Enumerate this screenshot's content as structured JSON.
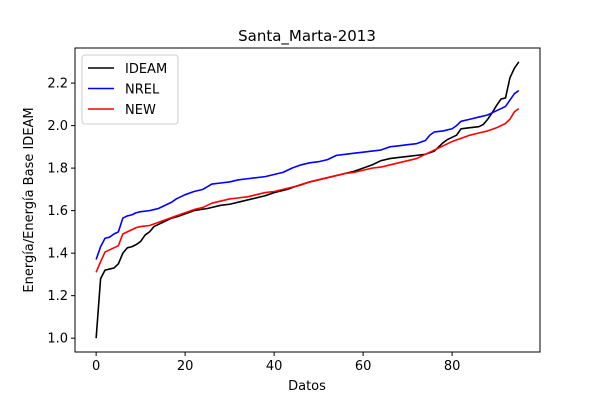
{
  "chart_data": {
    "type": "line",
    "title": "Santa_Marta-2013",
    "xlabel": "Datos",
    "ylabel": "Energía/Energía Base IDEAM",
    "xlim": [
      -4.75,
      99.75
    ],
    "ylim": [
      0.935,
      2.365
    ],
    "xticks": [
      0,
      20,
      40,
      60,
      80
    ],
    "yticks": [
      1.0,
      1.2,
      1.4,
      1.6,
      1.8,
      2.0,
      2.2
    ],
    "ytick_labels": [
      "1.0",
      "1.2",
      "1.4",
      "1.6",
      "1.8",
      "2.0",
      "2.2"
    ],
    "grid": false,
    "legend_position": "upper-left",
    "series": [
      {
        "name": "IDEAM",
        "color": "#000000",
        "points": [
          [
            0,
            1.0
          ],
          [
            1,
            1.28
          ],
          [
            2,
            1.32
          ],
          [
            3,
            1.325
          ],
          [
            4,
            1.33
          ],
          [
            5,
            1.35
          ],
          [
            6,
            1.4
          ],
          [
            7,
            1.425
          ],
          [
            8,
            1.43
          ],
          [
            9,
            1.44
          ],
          [
            10,
            1.455
          ],
          [
            11,
            1.485
          ],
          [
            12,
            1.5
          ],
          [
            13,
            1.525
          ],
          [
            14,
            1.535
          ],
          [
            15,
            1.545
          ],
          [
            16,
            1.555
          ],
          [
            17,
            1.565
          ],
          [
            18,
            1.57
          ],
          [
            20,
            1.585
          ],
          [
            22,
            1.6
          ],
          [
            25,
            1.61
          ],
          [
            28,
            1.625
          ],
          [
            30,
            1.63
          ],
          [
            33,
            1.645
          ],
          [
            36,
            1.66
          ],
          [
            38,
            1.67
          ],
          [
            40,
            1.685
          ],
          [
            43,
            1.7
          ],
          [
            45,
            1.715
          ],
          [
            48,
            1.735
          ],
          [
            50,
            1.745
          ],
          [
            52,
            1.755
          ],
          [
            55,
            1.77
          ],
          [
            58,
            1.785
          ],
          [
            60,
            1.8
          ],
          [
            62,
            1.815
          ],
          [
            64,
            1.835
          ],
          [
            66,
            1.845
          ],
          [
            68,
            1.85
          ],
          [
            70,
            1.855
          ],
          [
            72,
            1.86
          ],
          [
            74,
            1.865
          ],
          [
            76,
            1.88
          ],
          [
            77,
            1.9
          ],
          [
            78,
            1.92
          ],
          [
            79,
            1.935
          ],
          [
            80,
            1.945
          ],
          [
            81,
            1.955
          ],
          [
            82,
            1.985
          ],
          [
            84,
            1.99
          ],
          [
            86,
            1.995
          ],
          [
            87,
            2.005
          ],
          [
            88,
            2.03
          ],
          [
            89,
            2.06
          ],
          [
            90,
            2.095
          ],
          [
            91,
            2.125
          ],
          [
            92,
            2.13
          ],
          [
            93,
            2.225
          ],
          [
            94,
            2.27
          ],
          [
            95,
            2.3
          ]
        ]
      },
      {
        "name": "NREL",
        "color": "#0000ff",
        "points": [
          [
            0,
            1.37
          ],
          [
            1,
            1.43
          ],
          [
            2,
            1.47
          ],
          [
            3,
            1.475
          ],
          [
            4,
            1.49
          ],
          [
            5,
            1.5
          ],
          [
            6,
            1.565
          ],
          [
            7,
            1.575
          ],
          [
            8,
            1.58
          ],
          [
            9,
            1.59
          ],
          [
            10,
            1.595
          ],
          [
            12,
            1.6
          ],
          [
            13,
            1.605
          ],
          [
            14,
            1.61
          ],
          [
            15,
            1.62
          ],
          [
            16,
            1.63
          ],
          [
            17,
            1.64
          ],
          [
            18,
            1.655
          ],
          [
            19,
            1.665
          ],
          [
            20,
            1.675
          ],
          [
            22,
            1.69
          ],
          [
            24,
            1.7
          ],
          [
            26,
            1.725
          ],
          [
            28,
            1.73
          ],
          [
            30,
            1.735
          ],
          [
            32,
            1.745
          ],
          [
            34,
            1.75
          ],
          [
            36,
            1.755
          ],
          [
            38,
            1.76
          ],
          [
            40,
            1.77
          ],
          [
            42,
            1.78
          ],
          [
            44,
            1.8
          ],
          [
            46,
            1.815
          ],
          [
            48,
            1.825
          ],
          [
            50,
            1.83
          ],
          [
            52,
            1.84
          ],
          [
            54,
            1.86
          ],
          [
            56,
            1.865
          ],
          [
            58,
            1.87
          ],
          [
            60,
            1.875
          ],
          [
            62,
            1.88
          ],
          [
            64,
            1.885
          ],
          [
            66,
            1.9
          ],
          [
            68,
            1.905
          ],
          [
            70,
            1.91
          ],
          [
            72,
            1.915
          ],
          [
            74,
            1.93
          ],
          [
            75,
            1.955
          ],
          [
            76,
            1.97
          ],
          [
            78,
            1.975
          ],
          [
            80,
            1.985
          ],
          [
            81,
            2.0
          ],
          [
            82,
            2.02
          ],
          [
            84,
            2.03
          ],
          [
            86,
            2.04
          ],
          [
            88,
            2.05
          ],
          [
            89,
            2.06
          ],
          [
            90,
            2.07
          ],
          [
            91,
            2.08
          ],
          [
            92,
            2.09
          ],
          [
            93,
            2.12
          ],
          [
            94,
            2.15
          ],
          [
            95,
            2.165
          ]
        ]
      },
      {
        "name": "NEW",
        "color": "#ff0000",
        "points": [
          [
            0,
            1.31
          ],
          [
            1,
            1.36
          ],
          [
            2,
            1.405
          ],
          [
            3,
            1.415
          ],
          [
            4,
            1.425
          ],
          [
            5,
            1.435
          ],
          [
            6,
            1.49
          ],
          [
            7,
            1.5
          ],
          [
            8,
            1.51
          ],
          [
            9,
            1.52
          ],
          [
            10,
            1.525
          ],
          [
            12,
            1.53
          ],
          [
            14,
            1.545
          ],
          [
            16,
            1.56
          ],
          [
            18,
            1.575
          ],
          [
            20,
            1.59
          ],
          [
            22,
            1.605
          ],
          [
            24,
            1.615
          ],
          [
            26,
            1.635
          ],
          [
            28,
            1.645
          ],
          [
            30,
            1.655
          ],
          [
            32,
            1.66
          ],
          [
            34,
            1.665
          ],
          [
            36,
            1.675
          ],
          [
            38,
            1.685
          ],
          [
            40,
            1.69
          ],
          [
            42,
            1.7
          ],
          [
            44,
            1.71
          ],
          [
            46,
            1.72
          ],
          [
            48,
            1.735
          ],
          [
            50,
            1.745
          ],
          [
            52,
            1.755
          ],
          [
            54,
            1.765
          ],
          [
            56,
            1.775
          ],
          [
            58,
            1.78
          ],
          [
            60,
            1.79
          ],
          [
            62,
            1.8
          ],
          [
            64,
            1.805
          ],
          [
            66,
            1.815
          ],
          [
            68,
            1.825
          ],
          [
            70,
            1.835
          ],
          [
            72,
            1.845
          ],
          [
            74,
            1.865
          ],
          [
            76,
            1.885
          ],
          [
            78,
            1.905
          ],
          [
            80,
            1.925
          ],
          [
            82,
            1.94
          ],
          [
            84,
            1.955
          ],
          [
            86,
            1.965
          ],
          [
            88,
            1.975
          ],
          [
            90,
            1.99
          ],
          [
            92,
            2.01
          ],
          [
            93,
            2.03
          ],
          [
            94,
            2.065
          ],
          [
            95,
            2.08
          ]
        ]
      }
    ]
  }
}
